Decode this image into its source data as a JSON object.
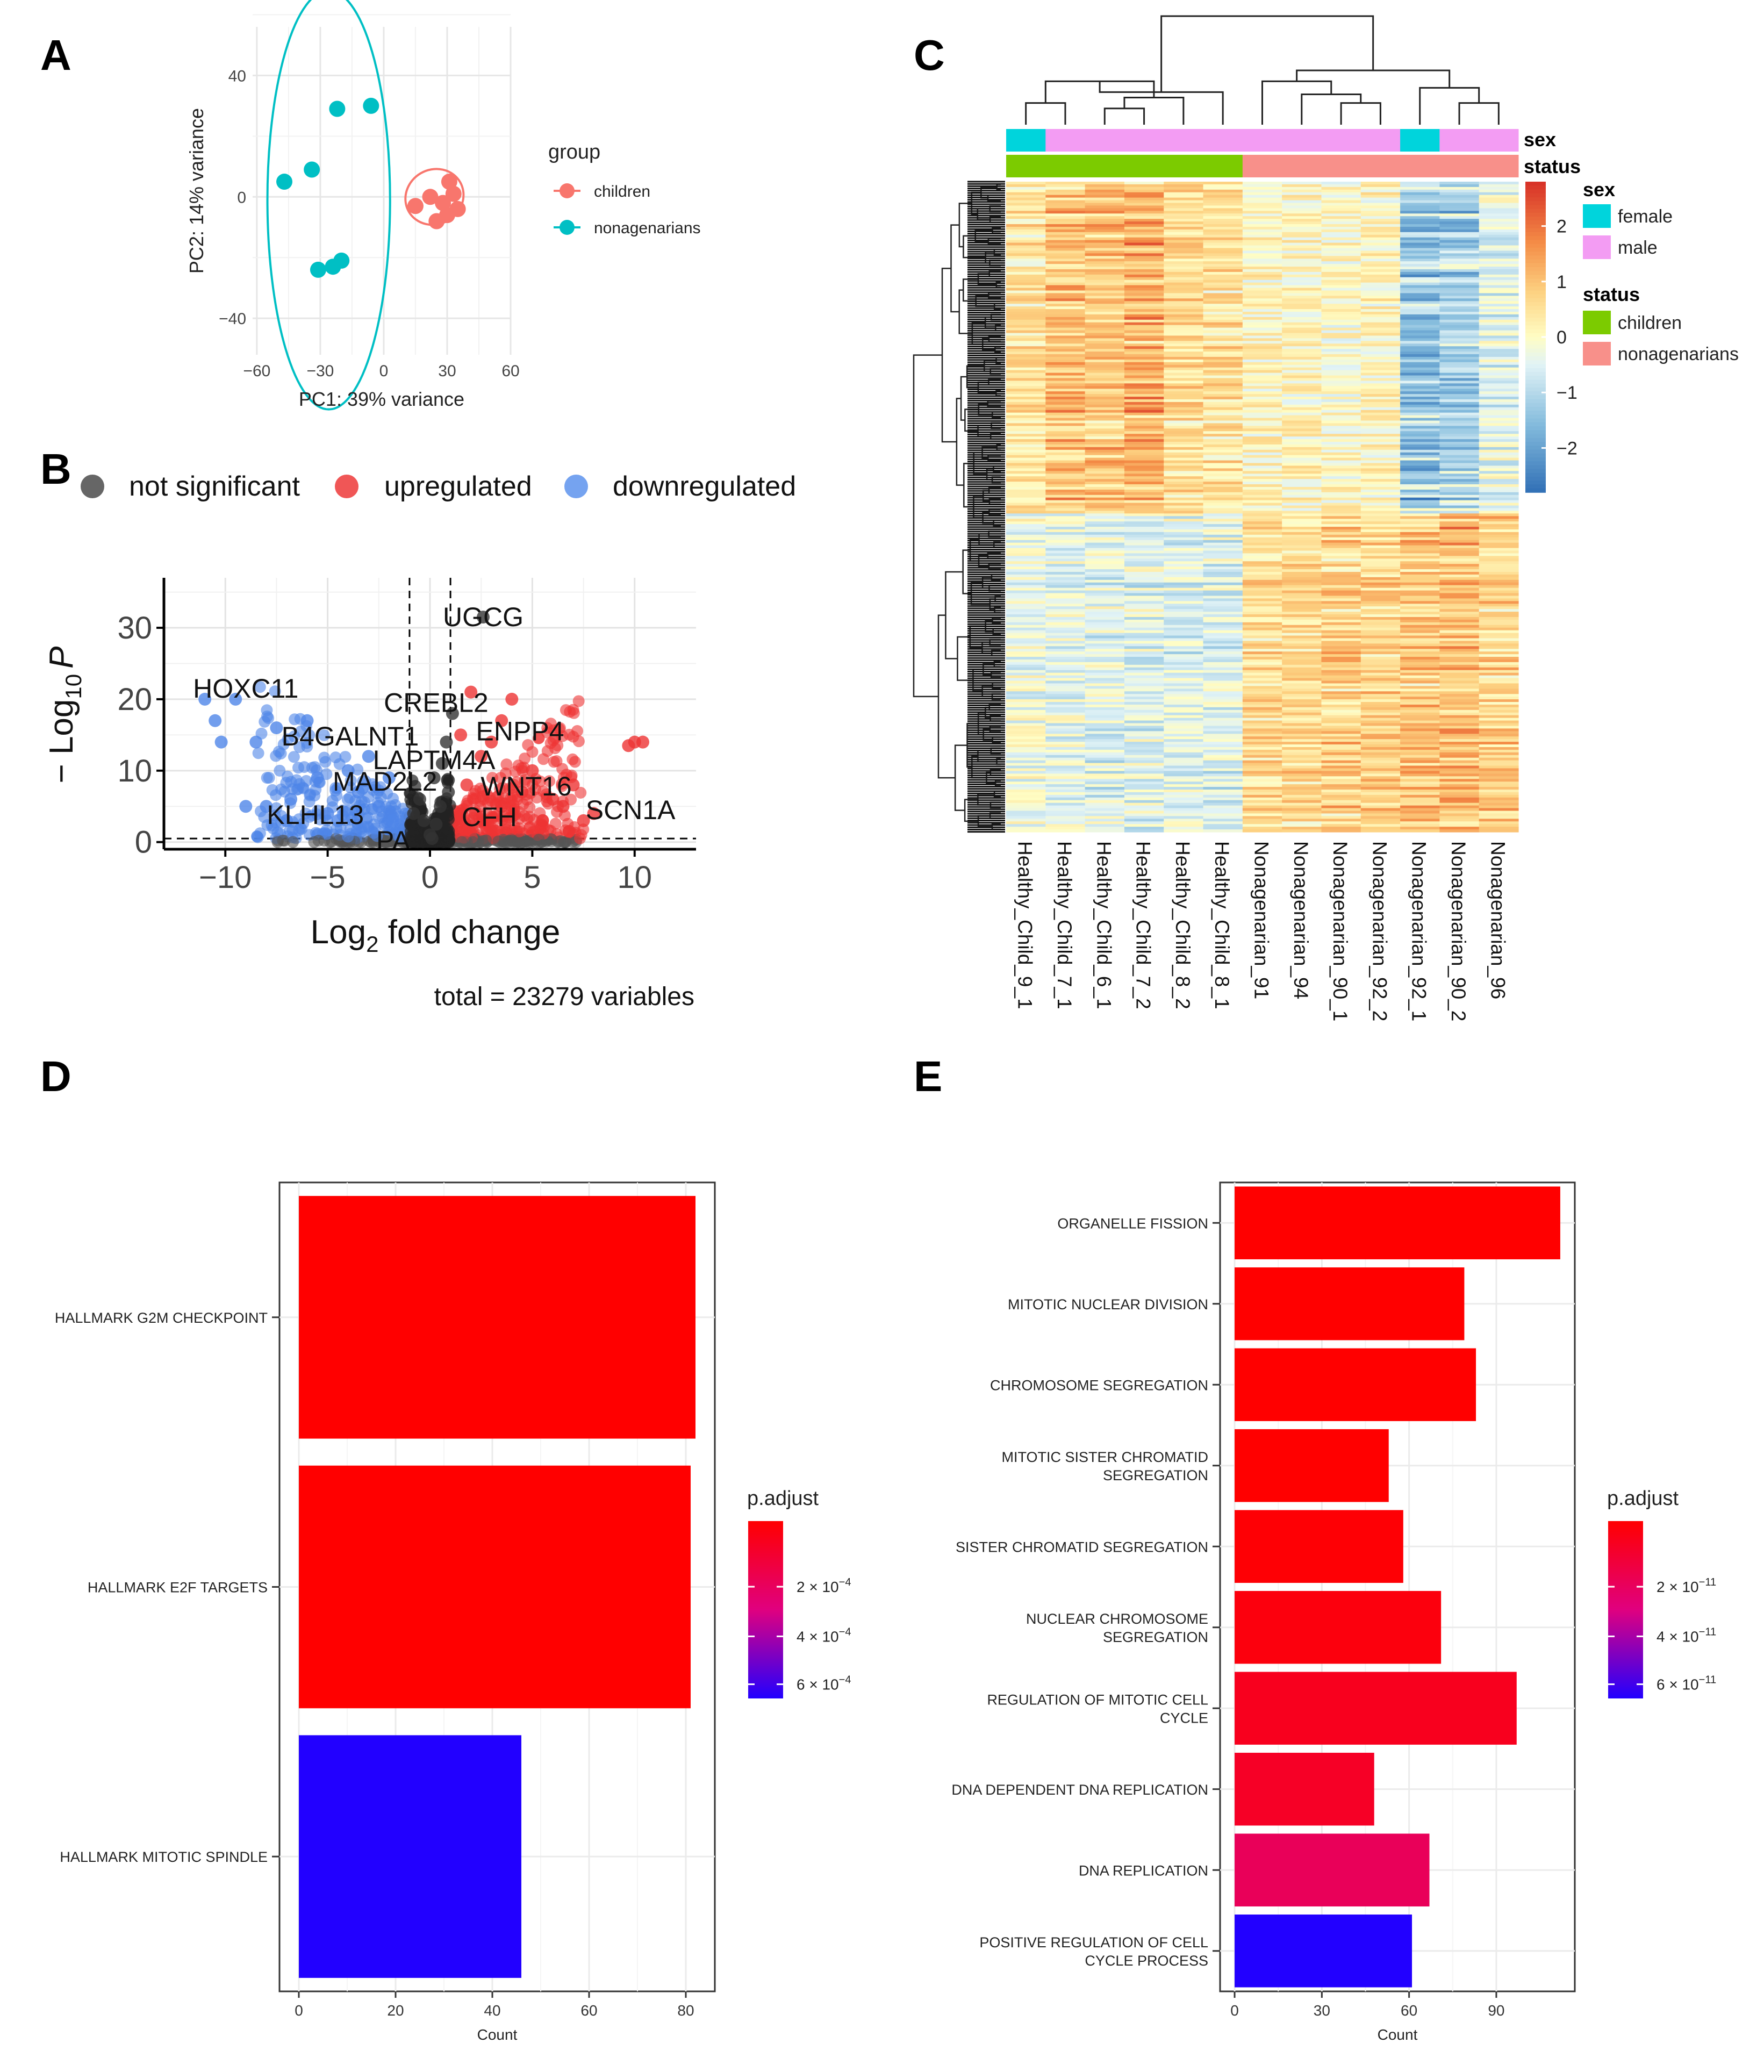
{
  "panels": {
    "A": "A",
    "B": "B",
    "C": "C",
    "D": "D",
    "E": "E"
  },
  "chart_data": [
    {
      "panel": "A",
      "type": "scatter",
      "xlabel": "PC1: 39% variance",
      "ylabel": "PC2: 14% variance",
      "xlim": [
        -62,
        60
      ],
      "ylim": [
        -52,
        56
      ],
      "xticks": [
        -60,
        -30,
        0,
        30,
        60
      ],
      "yticks": [
        -40,
        0,
        40
      ],
      "tick_labels_x": [
        "−60",
        "−30",
        "0",
        "30",
        "60"
      ],
      "tick_labels_y": [
        "−40",
        "0",
        "40"
      ],
      "legend_title": "group",
      "legend_position": "right",
      "series": [
        {
          "name": "children",
          "color": "#F8766D",
          "points": [
            [
              15,
              -3
            ],
            [
              22,
              0
            ],
            [
              25,
              -8
            ],
            [
              28,
              -2
            ],
            [
              31,
              5
            ],
            [
              33,
              1
            ],
            [
              35,
              -4
            ],
            [
              30,
              -6
            ]
          ],
          "ellipse": {
            "cx": 24,
            "cy": 0,
            "rx": 14,
            "ry": 9,
            "angle": -30
          }
        },
        {
          "name": "nonagenarians",
          "color": "#00BFC4",
          "points": [
            [
              -47,
              5
            ],
            [
              -34,
              9
            ],
            [
              -31,
              -24
            ],
            [
              -24,
              -23
            ],
            [
              -20,
              -21
            ],
            [
              -22,
              29
            ],
            [
              -6,
              30
            ]
          ],
          "ellipse": {
            "cx": -26,
            "cy": -1,
            "rx": 29,
            "ry": 69,
            "angle": 0
          }
        }
      ]
    },
    {
      "panel": "B",
      "type": "scatter",
      "subtype": "volcano",
      "xlabel_base": "Log",
      "xlabel_sub": "2",
      "xlabel_rest": " fold change",
      "ylabel_prefix": "− Log",
      "ylabel_sub": "10",
      "ylabel_p": "P",
      "xlim": [
        -13,
        13
      ],
      "ylim": [
        -1,
        37
      ],
      "xticks": [
        -10,
        -5,
        0,
        5,
        10
      ],
      "yticks": [
        0,
        10,
        20,
        30
      ],
      "tick_labels_x": [
        "−10",
        "−5",
        "0",
        "5",
        "10"
      ],
      "tick_labels_y": [
        "0",
        "10",
        "20",
        "30"
      ],
      "fc_cutoff": [
        -1,
        1
      ],
      "p_cutoff": 0.5,
      "legend_position": "top",
      "legend": [
        {
          "name": "not significant",
          "color": "#555555"
        },
        {
          "name": "upregulated",
          "color": "#EE4444"
        },
        {
          "name": "downregulated",
          "color": "#6699EE"
        }
      ],
      "caption": "total = 23279 variables",
      "labels": [
        {
          "text": "UGCG",
          "x": 2.6,
          "y": 31.5
        },
        {
          "text": "HOXC11",
          "x": -9.0,
          "y": 21.5
        },
        {
          "text": "CREBL2",
          "x": 0.3,
          "y": 19.5
        },
        {
          "text": "ENPP4",
          "x": 4.4,
          "y": 15.5
        },
        {
          "text": "B4GALNT1",
          "x": -3.9,
          "y": 14.8
        },
        {
          "text": "LAPTM4A",
          "x": 0.2,
          "y": 11.5
        },
        {
          "text": "MAD2L2",
          "x": -2.2,
          "y": 8.5
        },
        {
          "text": "WNT16",
          "x": 4.7,
          "y": 7.8
        },
        {
          "text": "SCN1A",
          "x": 9.8,
          "y": 4.5
        },
        {
          "text": "KLHL13",
          "x": -5.6,
          "y": 3.8
        },
        {
          "text": "CFH",
          "x": 2.9,
          "y": 3.5
        },
        {
          "text": "PA",
          "x": -1.8,
          "y": 0.2
        }
      ],
      "up_points": [
        [
          10,
          14
        ],
        [
          10.4,
          14
        ],
        [
          9.7,
          13.5
        ],
        [
          7,
          8
        ],
        [
          6.5,
          5
        ],
        [
          8,
          4
        ],
        [
          4,
          20
        ],
        [
          3.5,
          17
        ],
        [
          2,
          21
        ],
        [
          3,
          14
        ],
        [
          5,
          10
        ],
        [
          6,
          6
        ],
        [
          2.5,
          12
        ],
        [
          1.5,
          15
        ],
        [
          4.5,
          7
        ],
        [
          5.5,
          3
        ],
        [
          3.5,
          5
        ],
        [
          1.8,
          8
        ],
        [
          2.2,
          4
        ],
        [
          7.5,
          3
        ],
        [
          6.8,
          1.5
        ]
      ],
      "down_points": [
        [
          -11,
          20
        ],
        [
          -10.5,
          17
        ],
        [
          -10.2,
          14
        ],
        [
          -9.5,
          20
        ],
        [
          -8.5,
          14
        ],
        [
          -7.5,
          16
        ],
        [
          -6,
          17
        ],
        [
          -5.5,
          9
        ],
        [
          -4,
          10
        ],
        [
          -3.5,
          7
        ],
        [
          -6.8,
          6
        ],
        [
          -8,
          5
        ],
        [
          -9,
          5
        ],
        [
          -5,
          4
        ],
        [
          -3,
          12
        ],
        [
          -2.5,
          5
        ],
        [
          -4.5,
          3
        ],
        [
          -7,
          3
        ],
        [
          -2,
          9
        ],
        [
          -1.8,
          3
        ]
      ],
      "ns_points": [
        [
          0,
          1
        ],
        [
          0.3,
          2.5
        ],
        [
          -0.3,
          3
        ],
        [
          0.5,
          5
        ],
        [
          -0.5,
          6
        ],
        [
          0.2,
          9
        ],
        [
          0.8,
          14
        ],
        [
          1.1,
          18
        ],
        [
          0.6,
          11
        ],
        [
          -0.8,
          4
        ],
        [
          0.9,
          7
        ],
        [
          0.1,
          0.5
        ],
        [
          2.6,
          31.5
        ]
      ]
    },
    {
      "panel": "C",
      "type": "heatmap",
      "samples": [
        "Healthy_Child_9_1",
        "Healthy_Child_7_1",
        "Healthy_Child_6_1",
        "Healthy_Child_7_2",
        "Healthy_Child_8_2",
        "Healthy_Child_8_1",
        "Nonagenarian_91",
        "Nonagenarian_94",
        "Nonagenarian_90_1",
        "Nonagenarian_92_2",
        "Nonagenarian_92_1",
        "Nonagenarian_90_2",
        "Nonagenarian_96"
      ],
      "sex": [
        "female",
        "male",
        "male",
        "male",
        "male",
        "male",
        "male",
        "male",
        "male",
        "male",
        "female",
        "male",
        "male"
      ],
      "status": [
        "children",
        "children",
        "children",
        "children",
        "children",
        "children",
        "nonagenarians",
        "nonagenarians",
        "nonagenarians",
        "nonagenarians",
        "nonagenarians",
        "nonagenarians",
        "nonagenarians"
      ],
      "annotation_labels": {
        "sex": "sex",
        "status": "status"
      },
      "legend_sex_title": "sex",
      "legend_status_title": "status",
      "sex_legend": [
        {
          "name": "female",
          "color": "#00D4DC"
        },
        {
          "name": "male",
          "color": "#F39CF3"
        }
      ],
      "status_legend": [
        {
          "name": "children",
          "color": "#7CCB00"
        },
        {
          "name": "nonagenarians",
          "color": "#F8908A"
        }
      ],
      "color_scale": {
        "min": -2.8,
        "max": 2.8,
        "ticks": [
          -2,
          -1,
          0,
          1,
          2
        ],
        "tick_labels": [
          "−2",
          "−1",
          "0",
          "1",
          "2"
        ]
      },
      "block_means_top": [
        0.4,
        1.0,
        0.9,
        1.2,
        0.6,
        0.5,
        0.1,
        0.1,
        0.0,
        0.1,
        -1.4,
        -1.2,
        -0.5
      ],
      "block_means_bottom": [
        -0.3,
        -0.4,
        -0.5,
        -0.6,
        -0.5,
        -0.6,
        0.6,
        0.6,
        0.8,
        0.7,
        1.0,
        1.1,
        0.8
      ],
      "col_dendrogram": [
        {
          "l": 0,
          "r": 1,
          "h": 0.2
        },
        {
          "l": 2,
          "r": 3,
          "h": 0.15
        },
        {
          "l": 101,
          "r": 4,
          "h": 0.25
        },
        {
          "l": 100,
          "r": 102,
          "h": 0.4
        },
        {
          "l": 103,
          "r": 5,
          "h": 0.3
        },
        {
          "l": 8,
          "r": 9,
          "h": 0.2
        },
        {
          "l": 7,
          "r": 105,
          "h": 0.28
        },
        {
          "l": 6,
          "r": 106,
          "h": 0.4
        },
        {
          "l": 11,
          "r": 12,
          "h": 0.2
        },
        {
          "l": 10,
          "r": 108,
          "h": 0.34
        },
        {
          "l": 107,
          "r": 109,
          "h": 0.5
        },
        {
          "l": 104,
          "r": 110,
          "h": 1.0
        }
      ]
    },
    {
      "panel": "D",
      "type": "bar",
      "orientation": "horizontal",
      "categories": [
        "HALLMARK G2M CHECKPOINT",
        "HALLMARK E2F TARGETS",
        "HALLMARK MITOTIC SPINDLE"
      ],
      "values": [
        82,
        81,
        46
      ],
      "p_adjust": [
        0.0,
        0.0,
        0.00066
      ],
      "xlabel": "Count",
      "xlim": [
        -4,
        86
      ],
      "xticks": [
        0,
        20,
        40,
        60,
        80
      ],
      "tick_labels_x": [
        "0",
        "20",
        "40",
        "60",
        "80"
      ],
      "legend_title": "p.adjust",
      "legend_ticks": [
        {
          "base": "2 × 10",
          "exp": "−4",
          "f": 0.37
        },
        {
          "base": "4 × 10",
          "exp": "−4",
          "f": 0.65
        },
        {
          "base": "6 × 10",
          "exp": "−4",
          "f": 0.92
        }
      ]
    },
    {
      "panel": "E",
      "type": "bar",
      "orientation": "horizontal",
      "categories": [
        [
          "ORGANELLE FISSION"
        ],
        [
          "MITOTIC NUCLEAR DIVISION"
        ],
        [
          "CHROMOSOME SEGREGATION"
        ],
        [
          "MITOTIC SISTER CHROMATID",
          "SEGREGATION"
        ],
        [
          "SISTER CHROMATID SEGREGATION"
        ],
        [
          "NUCLEAR CHROMOSOME",
          "SEGREGATION"
        ],
        [
          "REGULATION OF MITOTIC CELL",
          "CYCLE"
        ],
        [
          "DNA DEPENDENT DNA REPLICATION"
        ],
        [
          "DNA REPLICATION"
        ],
        [
          "POSITIVE REGULATION OF CELL",
          "CYCLE PROCESS"
        ]
      ],
      "values": [
        112,
        79,
        83,
        53,
        58,
        71,
        97,
        48,
        67,
        61
      ],
      "p_adjust_fraction": [
        0.0,
        0.0,
        0.0,
        0.0,
        0.02,
        0.05,
        0.12,
        0.15,
        0.35,
        1.0
      ],
      "xlabel": "Count",
      "xlim": [
        -5,
        117
      ],
      "xticks": [
        0,
        30,
        60,
        90
      ],
      "tick_labels_x": [
        "0",
        "30",
        "60",
        "90"
      ],
      "legend_title": "p.adjust",
      "legend_ticks": [
        {
          "base": "2 × 10",
          "exp": "−11",
          "f": 0.37
        },
        {
          "base": "4 × 10",
          "exp": "−11",
          "f": 0.65
        },
        {
          "base": "6 × 10",
          "exp": "−11",
          "f": 0.92
        }
      ]
    }
  ]
}
